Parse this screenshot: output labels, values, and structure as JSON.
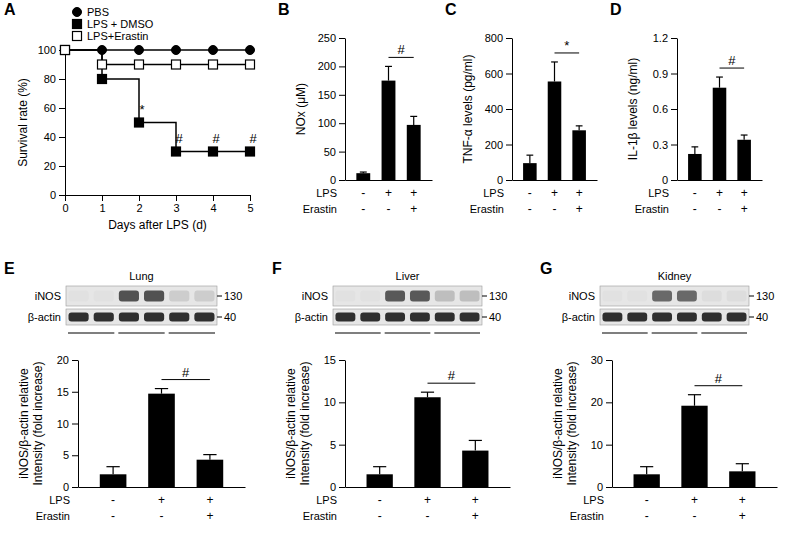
{
  "chart_data": [
    {
      "type": "line",
      "panel_label": "A",
      "ylabel": "Survival rate (%)",
      "xlabel": "Days after LPS (d)",
      "x": [
        0,
        1,
        2,
        3,
        4,
        5
      ],
      "xlim": [
        0,
        5
      ],
      "xticks": [
        0,
        1,
        2,
        3,
        4,
        5
      ],
      "ylim": [
        0,
        100
      ],
      "yticks": [
        0,
        20,
        40,
        60,
        80,
        100
      ],
      "line_style": "step",
      "legend": "top-left",
      "series": [
        {
          "name": "PBS",
          "color": "#000000",
          "marker": "circle",
          "values": [
            100,
            100,
            100,
            100,
            100,
            100
          ]
        },
        {
          "name": "LPS + DMSO",
          "color": "#000000",
          "marker": "square",
          "values": [
            100,
            80,
            50,
            30,
            30,
            30
          ]
        },
        {
          "name": "LPS+Erastin",
          "color": "#000000",
          "marker": "open-square",
          "values": [
            100,
            90,
            90,
            90,
            90,
            90
          ]
        }
      ],
      "annotations": [
        {
          "text": "*",
          "x": 2,
          "y": 50
        },
        {
          "text": "#",
          "x": 3,
          "y": 30
        },
        {
          "text": "#",
          "x": 4,
          "y": 30
        },
        {
          "text": "#",
          "x": 5,
          "y": 30
        }
      ]
    },
    {
      "type": "bar",
      "panel_label": "B",
      "ylabel": "NOx (μM)",
      "color": "#000000",
      "categories": [
        null,
        null,
        null
      ],
      "values": [
        12,
        175,
        97
      ],
      "errors": [
        2,
        25,
        15
      ],
      "ylim": [
        0,
        250
      ],
      "yticks": [
        0,
        50,
        100,
        150,
        200,
        250
      ],
      "condition_rows": [
        {
          "label": "LPS",
          "values": [
            "-",
            "+",
            "+"
          ]
        },
        {
          "label": "Erastin",
          "values": [
            "-",
            "-",
            "+"
          ]
        }
      ],
      "annotations": [
        {
          "text": "#",
          "from": 1,
          "to": 2
        }
      ]
    },
    {
      "type": "bar",
      "panel_label": "C",
      "ylabel": "TNF-α levels (pg/ml)",
      "color": "#000000",
      "categories": [
        null,
        null,
        null
      ],
      "values": [
        95,
        555,
        280
      ],
      "errors": [
        45,
        110,
        25
      ],
      "ylim": [
        0,
        800
      ],
      "yticks": [
        0,
        200,
        400,
        600,
        800
      ],
      "condition_rows": [
        {
          "label": "LPS",
          "values": [
            "-",
            "+",
            "+"
          ]
        },
        {
          "label": "Erastin",
          "values": [
            "-",
            "-",
            "+"
          ]
        }
      ],
      "annotations": [
        {
          "text": "*",
          "from": 1,
          "to": 2
        }
      ]
    },
    {
      "type": "bar",
      "panel_label": "D",
      "ylabel": "IL-1β levels (ng/ml)",
      "color": "#000000",
      "categories": [
        null,
        null,
        null
      ],
      "values": [
        0.22,
        0.78,
        0.34
      ],
      "errors": [
        0.06,
        0.09,
        0.04
      ],
      "ylim": [
        0,
        1.2
      ],
      "yticks": [
        0,
        0.3,
        0.6,
        0.9,
        1.2
      ],
      "condition_rows": [
        {
          "label": "LPS",
          "values": [
            "-",
            "+",
            "+"
          ]
        },
        {
          "label": "Erastin",
          "values": [
            "-",
            "-",
            "+"
          ]
        }
      ],
      "annotations": [
        {
          "text": "#",
          "from": 1,
          "to": 2
        }
      ]
    },
    {
      "type": "bar",
      "panel_label": "E",
      "ylabel": [
        "iNOS/β-actin relative",
        "Intensity (fold increase)"
      ],
      "color": "#000000",
      "categories": [
        null,
        null,
        null
      ],
      "values": [
        2,
        14.7,
        4.3
      ],
      "errors": [
        1.2,
        0.8,
        0.8
      ],
      "ylim": [
        0,
        20
      ],
      "yticks": [
        0,
        5,
        10,
        15,
        20
      ],
      "condition_rows": [
        {
          "label": "LPS",
          "values": [
            "-",
            "+",
            "+"
          ]
        },
        {
          "label": "Erastin",
          "values": [
            "-",
            "-",
            "+"
          ]
        }
      ],
      "annotations": [
        {
          "text": "#",
          "from": 1,
          "to": 2
        }
      ],
      "blot": {
        "title": "Lung",
        "rows": [
          {
            "label": "iNOS",
            "size_kda": 130
          },
          {
            "label": "β-actin",
            "size_kda": 40
          }
        ]
      }
    },
    {
      "type": "bar",
      "panel_label": "F",
      "ylabel": [
        "iNOS/β-actin relative",
        "Intensity (fold increase)"
      ],
      "color": "#000000",
      "categories": [
        null,
        null,
        null
      ],
      "values": [
        1.5,
        10.6,
        4.3
      ],
      "errors": [
        0.9,
        0.6,
        1.2
      ],
      "ylim": [
        0,
        15
      ],
      "yticks": [
        0,
        5,
        10,
        15
      ],
      "condition_rows": [
        {
          "label": "LPS",
          "values": [
            "-",
            "+",
            "+"
          ]
        },
        {
          "label": "Erastin",
          "values": [
            "-",
            "-",
            "+"
          ]
        }
      ],
      "annotations": [
        {
          "text": "#",
          "from": 1,
          "to": 2
        }
      ],
      "blot": {
        "title": "Liver",
        "rows": [
          {
            "label": "iNOS",
            "size_kda": 130
          },
          {
            "label": "β-actin",
            "size_kda": 40
          }
        ]
      }
    },
    {
      "type": "bar",
      "panel_label": "G",
      "ylabel": [
        "iNOS/β-actin relative",
        "Intensity (fold increase)"
      ],
      "color": "#000000",
      "categories": [
        null,
        null,
        null
      ],
      "values": [
        3,
        19.2,
        3.7
      ],
      "errors": [
        1.8,
        2.6,
        1.8
      ],
      "ylim": [
        0,
        30
      ],
      "yticks": [
        0,
        10,
        20,
        30
      ],
      "condition_rows": [
        {
          "label": "LPS",
          "values": [
            "-",
            "+",
            "+"
          ]
        },
        {
          "label": "Erastin",
          "values": [
            "-",
            "-",
            "+"
          ]
        }
      ],
      "annotations": [
        {
          "text": "#",
          "from": 1,
          "to": 2
        }
      ],
      "blot": {
        "title": "Kidney",
        "rows": [
          {
            "label": "iNOS",
            "size_kda": 130
          },
          {
            "label": "β-actin",
            "size_kda": 40
          }
        ]
      }
    }
  ]
}
